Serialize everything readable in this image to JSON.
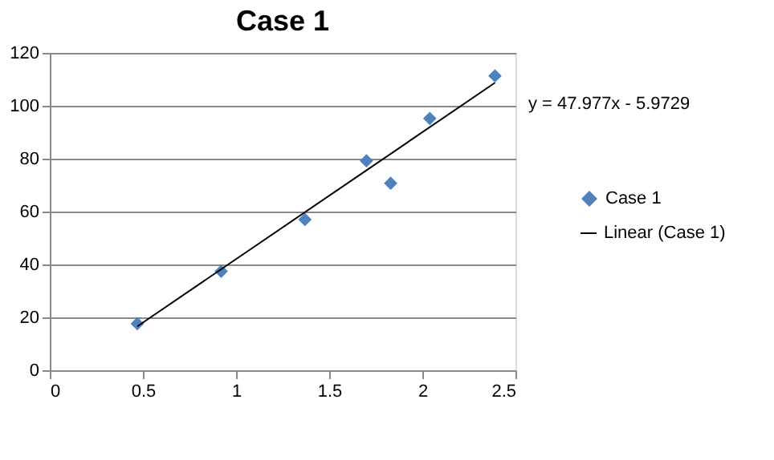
{
  "chart_data": {
    "type": "scatter",
    "title": "Case 1",
    "xlim": [
      0,
      2.5
    ],
    "xticks": [
      0,
      0.5,
      1,
      1.5,
      2,
      2.5
    ],
    "ylim": [
      0,
      120
    ],
    "yticks": [
      0,
      20,
      40,
      60,
      80,
      100,
      120
    ],
    "grid": "y",
    "legend": "right",
    "annotations": [
      "y = 47.977x - 5.9729"
    ],
    "series": [
      {
        "name": "Case 1",
        "marker": "diamond",
        "color": "#4f81bd",
        "x": [
          0.47,
          0.92,
          1.37,
          1.7,
          1.83,
          2.04,
          2.39
        ],
        "values": [
          17.6,
          37.4,
          57,
          79.2,
          70.7,
          95.2,
          111.3
        ]
      },
      {
        "name": "Linear (Case 1)",
        "type": "line",
        "marker": "none",
        "color": "#000000",
        "line_style": "solid",
        "x": [
          0.47,
          2.39
        ],
        "values": [
          16.6,
          108.7
        ]
      }
    ]
  }
}
